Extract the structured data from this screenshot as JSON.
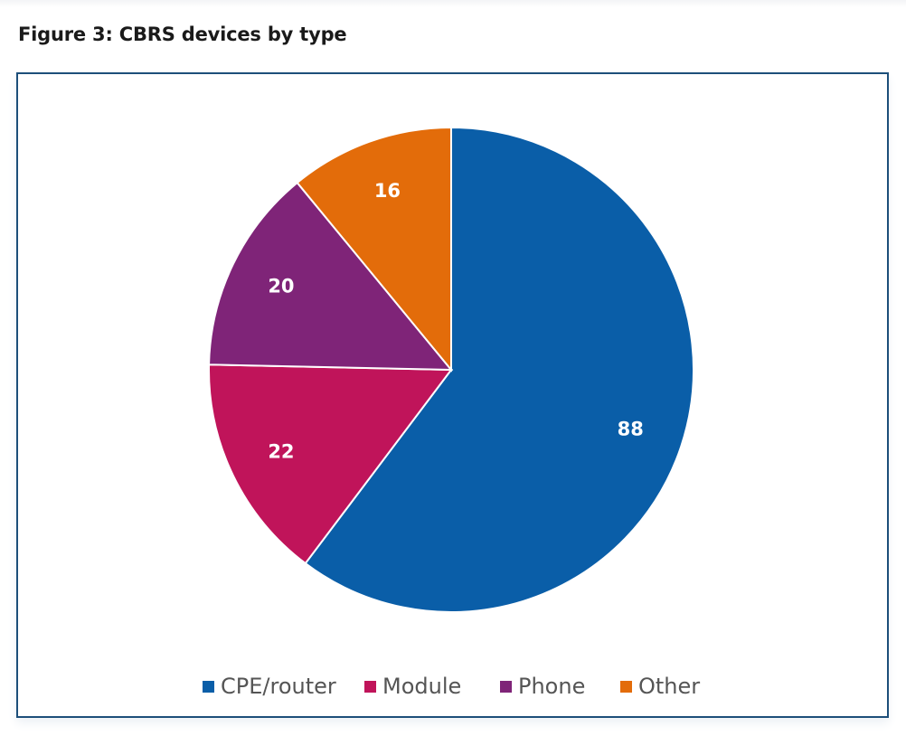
{
  "title": "Figure 3: CBRS devices by type",
  "chart_data": {
    "type": "pie",
    "title": "Figure 3: CBRS devices by type",
    "categories": [
      "CPE/router",
      "Module",
      "Phone",
      "Other"
    ],
    "values": [
      88,
      22,
      20,
      16
    ],
    "colors": [
      "#0a5ea8",
      "#c0145a",
      "#7f2478",
      "#e36c0a"
    ],
    "start": "12 o'clock, clockwise",
    "legend": "bottom"
  }
}
